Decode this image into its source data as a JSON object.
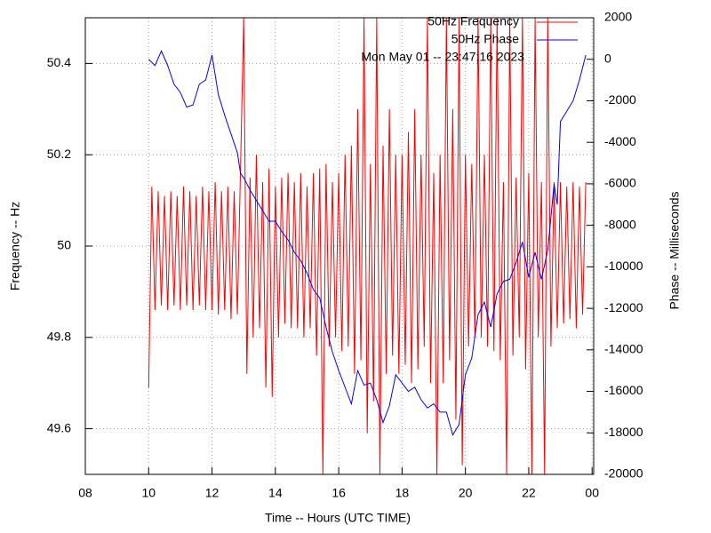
{
  "chart_data": {
    "type": "line",
    "xlabel": "Time -- Hours (UTC TIME)",
    "ylabel": "Frequency -- Hz",
    "y2label": "Phase -- Milliseconds",
    "annotation": "Mon May 01 -- 23:47:16 2023",
    "xlim": [
      8,
      24.05
    ],
    "xticks": [
      {
        "value": 8,
        "label": "08"
      },
      10,
      12,
      14,
      16,
      18,
      20,
      22,
      {
        "value": 24,
        "label": "00"
      }
    ],
    "ylim": [
      49.5,
      50.5
    ],
    "yticks": [
      49.6,
      49.8,
      50,
      50.2,
      50.4
    ],
    "y2lim": [
      -20000,
      2000
    ],
    "y2ticks": [
      -20000,
      -18000,
      -16000,
      -14000,
      -12000,
      -10000,
      -8000,
      -6000,
      -4000,
      -2000,
      0,
      2000
    ],
    "grid": true,
    "legend": "top-right",
    "series": [
      {
        "name": "50Hz Frequency",
        "color": "#ff0000",
        "x": [
          10.0,
          10.1,
          10.2,
          10.3,
          10.4,
          10.5,
          10.6,
          10.7,
          10.8,
          10.9,
          11.0,
          11.1,
          11.2,
          11.3,
          11.4,
          11.5,
          11.6,
          11.7,
          11.8,
          11.9,
          12.0,
          12.1,
          12.2,
          12.3,
          12.4,
          12.5,
          12.6,
          12.7,
          12.8,
          12.9,
          13.0,
          13.1,
          13.2,
          13.3,
          13.4,
          13.5,
          13.6,
          13.7,
          13.8,
          13.9,
          14.0,
          14.1,
          14.2,
          14.3,
          14.4,
          14.5,
          14.6,
          14.7,
          14.8,
          14.9,
          15.0,
          15.1,
          15.2,
          15.3,
          15.4,
          15.5,
          15.6,
          15.7,
          15.8,
          15.9,
          16.0,
          16.1,
          16.2,
          16.3,
          16.4,
          16.5,
          16.6,
          16.7,
          16.8,
          16.9,
          17.0,
          17.1,
          17.2,
          17.3,
          17.4,
          17.5,
          17.6,
          17.7,
          17.8,
          17.9,
          18.0,
          18.1,
          18.2,
          18.3,
          18.4,
          18.5,
          18.6,
          18.7,
          18.8,
          18.9,
          19.0,
          19.1,
          19.2,
          19.3,
          19.4,
          19.5,
          19.6,
          19.7,
          19.8,
          19.9,
          20.0,
          20.1,
          20.2,
          20.3,
          20.4,
          20.5,
          20.6,
          20.7,
          20.8,
          20.9,
          21.0,
          21.1,
          21.2,
          21.3,
          21.4,
          21.5,
          21.6,
          21.7,
          21.8,
          21.9,
          22.0,
          22.1,
          22.2,
          22.3,
          22.4,
          22.5,
          22.6,
          22.7,
          22.8,
          22.9,
          23.0,
          23.1,
          23.2,
          23.3,
          23.4,
          23.5,
          23.6,
          23.7,
          23.8
        ],
        "values": [
          49.69,
          50.13,
          49.86,
          50.12,
          49.87,
          50.11,
          49.86,
          50.12,
          49.87,
          50.11,
          49.86,
          50.13,
          49.87,
          50.12,
          49.86,
          50.11,
          49.87,
          50.13,
          49.86,
          50.12,
          49.86,
          50.14,
          49.85,
          50.12,
          49.86,
          50.13,
          49.84,
          50.12,
          49.85,
          50.17,
          50.5,
          49.72,
          50.15,
          49.8,
          50.2,
          49.82,
          50.14,
          49.69,
          50.17,
          49.67,
          50.13,
          49.8,
          50.15,
          49.83,
          50.16,
          49.82,
          50.14,
          49.82,
          50.16,
          49.8,
          50.13,
          49.82,
          50.16,
          49.76,
          50.17,
          49.5,
          50.18,
          49.78,
          50.14,
          49.8,
          50.16,
          49.77,
          50.2,
          49.78,
          50.22,
          49.72,
          50.3,
          49.75,
          50.5,
          49.59,
          50.18,
          49.66,
          50.5,
          49.5,
          50.22,
          49.72,
          50.3,
          49.76,
          50.2,
          49.72,
          50.2,
          49.74,
          50.25,
          49.7,
          50.3,
          49.73,
          50.2,
          49.78,
          50.5,
          49.7,
          50.16,
          49.5,
          50.2,
          49.7,
          50.5,
          49.75,
          50.3,
          49.62,
          50.5,
          49.52,
          50.2,
          49.78,
          50.18,
          49.8,
          50.5,
          49.8,
          50.2,
          49.78,
          50.5,
          49.77,
          50.5,
          49.75,
          50.14,
          49.5,
          50.5,
          49.76,
          50.15,
          49.8,
          50.5,
          49.73,
          50.16,
          49.5,
          50.5,
          49.8,
          50.14,
          49.5,
          50.5,
          49.78,
          50.14,
          49.82,
          50.14,
          49.83,
          50.13,
          49.84,
          50.14,
          49.82,
          50.13,
          49.85,
          50.14
        ]
      },
      {
        "name": "50Hz Phase",
        "color": "#0000ff",
        "axis": "y2",
        "x": [
          10.0,
          10.2,
          10.4,
          10.6,
          10.8,
          11.0,
          11.2,
          11.4,
          11.6,
          11.8,
          12.0,
          12.2,
          12.4,
          12.6,
          12.8,
          12.9,
          13.0,
          13.2,
          13.4,
          13.6,
          13.8,
          14.0,
          14.2,
          14.4,
          14.6,
          14.8,
          15.0,
          15.2,
          15.4,
          15.6,
          15.8,
          16.0,
          16.2,
          16.4,
          16.6,
          16.8,
          17.0,
          17.2,
          17.4,
          17.6,
          17.8,
          18.0,
          18.2,
          18.4,
          18.6,
          18.8,
          19.0,
          19.2,
          19.4,
          19.6,
          19.8,
          20.0,
          20.2,
          20.4,
          20.6,
          20.8,
          21.0,
          21.2,
          21.4,
          21.6,
          21.8,
          22.0,
          22.2,
          22.4,
          22.6,
          22.8,
          22.9,
          23.0,
          23.2,
          23.4,
          23.6,
          23.8
        ],
        "values": [
          0,
          -300,
          400,
          -300,
          -1200,
          -1600,
          -2300,
          -2200,
          -1200,
          -1000,
          200,
          -1700,
          -2700,
          -3600,
          -4500,
          -5500,
          -5700,
          -6300,
          -6800,
          -7300,
          -7800,
          -7800,
          -8300,
          -8700,
          -9300,
          -9700,
          -10300,
          -11100,
          -11500,
          -12900,
          -14100,
          -15000,
          -15800,
          -16600,
          -15000,
          -15700,
          -15600,
          -16400,
          -17500,
          -16700,
          -15200,
          -15600,
          -16000,
          -15800,
          -16400,
          -16800,
          -16600,
          -17000,
          -17000,
          -18100,
          -17600,
          -15200,
          -14400,
          -12300,
          -11700,
          -12900,
          -11300,
          -10700,
          -10600,
          -9800,
          -8800,
          -10500,
          -9300,
          -10600,
          -9200,
          -6000,
          -7000,
          -3000,
          -2500,
          -2000,
          -1000,
          200
        ]
      }
    ]
  }
}
